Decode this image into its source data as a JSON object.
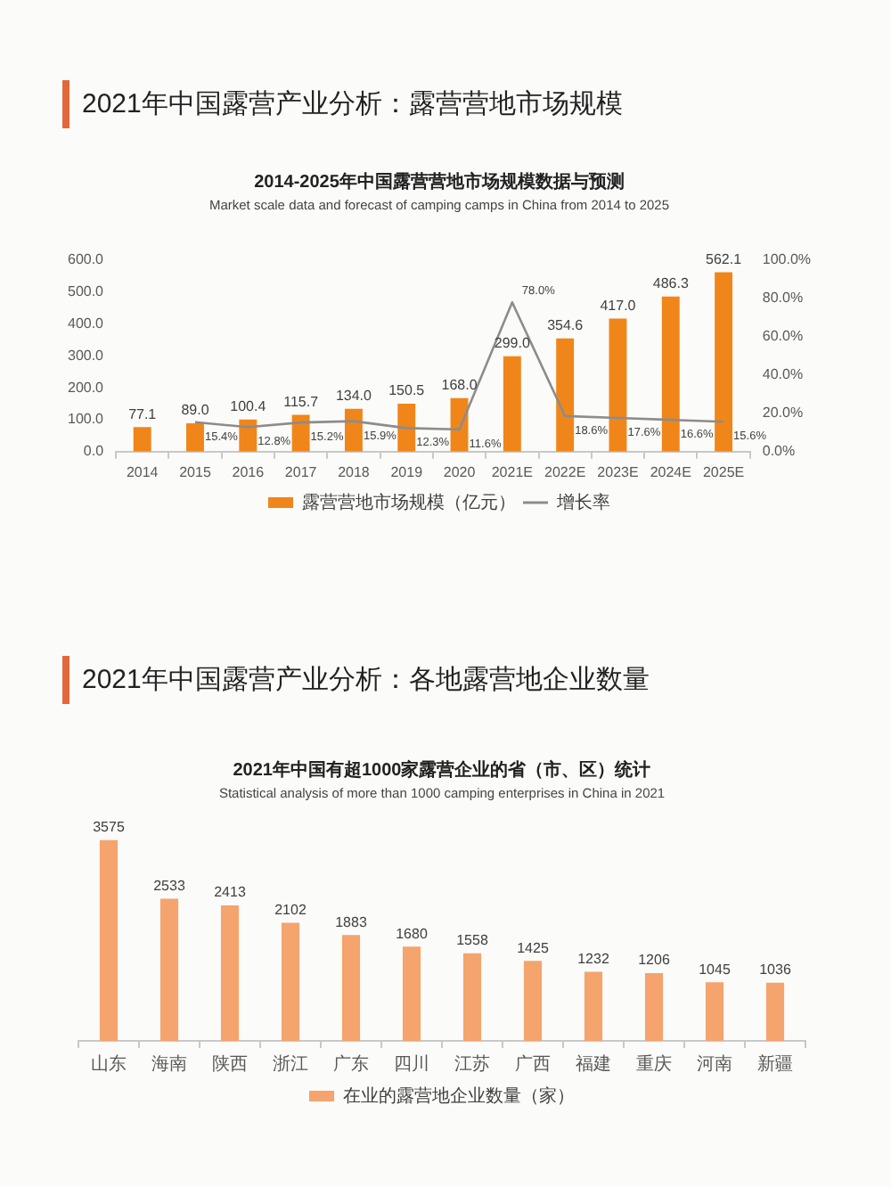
{
  "chart_data": [
    {
      "type": "bar",
      "title": "2014-2025年中国露营营地市场规模数据与预测",
      "subtitle": "Market scale data and forecast of camping camps in China from 2014 to 2025",
      "annotations": [
        "2021年中国露营产业分析：露营营地市场规模"
      ],
      "categories": [
        "2014",
        "2015",
        "2016",
        "2017",
        "2018",
        "2019",
        "2020",
        "2021E",
        "2022E",
        "2023E",
        "2024E",
        "2025E"
      ],
      "series": [
        {
          "name": "露营营地市场规模（亿元）",
          "type": "bar",
          "color": "#f0861a",
          "values": [
            77.1,
            89.0,
            100.4,
            115.7,
            134.0,
            150.5,
            168.0,
            299.0,
            354.6,
            417.0,
            486.3,
            562.1
          ],
          "value_labels": [
            "77.1",
            "89.0",
            "100.4",
            "115.7",
            "134.0",
            "150.5",
            "168.0",
            "299.0",
            "354.6",
            "417.0",
            "486.3",
            "562.1"
          ]
        },
        {
          "name": "增长率",
          "type": "line",
          "axis": "y2",
          "color": "#8c8c8c",
          "values": [
            null,
            15.4,
            12.8,
            15.2,
            15.9,
            12.3,
            11.6,
            78.0,
            18.6,
            17.6,
            16.6,
            15.6
          ],
          "value_labels": [
            null,
            "15.4%",
            "12.8%",
            "15.2%",
            "15.9%",
            "12.3%",
            "11.6%",
            "78.0%",
            "18.6%",
            "17.6%",
            "16.6%",
            "15.6%"
          ]
        }
      ],
      "ylim": [
        0,
        600
      ],
      "yticks": [
        {
          "value": 0,
          "label": "0.0"
        },
        {
          "value": 100,
          "label": "100.0"
        },
        {
          "value": 200,
          "label": "200.0"
        },
        {
          "value": 300,
          "label": "300.0"
        },
        {
          "value": 400,
          "label": "400.0"
        },
        {
          "value": 500,
          "label": "500.0"
        },
        {
          "value": 600,
          "label": "600.0"
        }
      ],
      "y2lim": [
        0,
        100
      ],
      "y2ticks": [
        {
          "value": 0,
          "label": "0.0%"
        },
        {
          "value": 20,
          "label": "20.0%"
        },
        {
          "value": 40,
          "label": "40.0%"
        },
        {
          "value": 60,
          "label": "60.0%"
        },
        {
          "value": 80,
          "label": "80.0%"
        },
        {
          "value": 100,
          "label": "100.0%"
        }
      ],
      "grid": false,
      "legend": "bottom",
      "marker": "none"
    },
    {
      "type": "bar",
      "title": "2021年中国有超1000家露营企业的省（市、区）统计",
      "subtitle": "Statistical analysis of more than 1000 camping enterprises in China in 2021",
      "annotations": [
        "2021年中国露营产业分析：各地露营地企业数量"
      ],
      "categories": [
        "山东",
        "海南",
        "陕西",
        "浙江",
        "广东",
        "四川",
        "江苏",
        "广西",
        "福建",
        "重庆",
        "河南",
        "新疆"
      ],
      "series": [
        {
          "name": "在业的露营地企业数量（家）",
          "color": "#f4a46c",
          "values": [
            3575,
            2533,
            2413,
            2102,
            1883,
            1680,
            1558,
            1425,
            1232,
            1206,
            1045,
            1036
          ]
        }
      ],
      "data_labels": true,
      "legend": "bottom",
      "tick_labels": "x",
      "grid": false
    }
  ]
}
